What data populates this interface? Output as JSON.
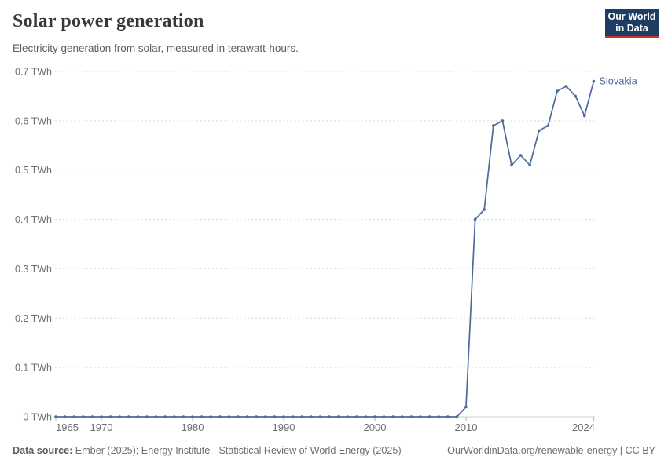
{
  "header": {
    "title": "Solar power generation",
    "subtitle": "Electricity generation from solar, measured in terawatt-hours.",
    "logo": {
      "line1": "Our World",
      "line2": "in Data"
    }
  },
  "colors": {
    "series_blue": "#4c6a9c",
    "logo_navy": "#1d3d63",
    "logo_red": "#c9342c",
    "gridline": "#dedede",
    "axis_line": "#cfcfcf",
    "tick_label": "#6e6e6e"
  },
  "chart_data": {
    "type": "line",
    "title": "Solar power generation",
    "subtitle": "Electricity generation from solar, measured in terawatt-hours.",
    "xlabel": "",
    "ylabel": "TWh",
    "xlim": [
      1965,
      2024
    ],
    "ylim": [
      0,
      0.7
    ],
    "grid": "horizontal-dashed",
    "legend_position": "end-of-line-label",
    "x_ticks": [
      1965,
      1970,
      1980,
      1990,
      2000,
      2010,
      2024
    ],
    "y_ticks": [
      0,
      0.1,
      0.2,
      0.3,
      0.4,
      0.5,
      0.6,
      0.7
    ],
    "y_tick_labels": [
      "0 TWh",
      "0.1 TWh",
      "0.2 TWh",
      "0.3 TWh",
      "0.4 TWh",
      "0.5 TWh",
      "0.6 TWh",
      "0.7 TWh"
    ],
    "series": [
      {
        "name": "Slovakia",
        "color": "#4c6a9c",
        "x": [
          1965,
          1966,
          1967,
          1968,
          1969,
          1970,
          1971,
          1972,
          1973,
          1974,
          1975,
          1976,
          1977,
          1978,
          1979,
          1980,
          1981,
          1982,
          1983,
          1984,
          1985,
          1986,
          1987,
          1988,
          1989,
          1990,
          1991,
          1992,
          1993,
          1994,
          1995,
          1996,
          1997,
          1998,
          1999,
          2000,
          2001,
          2002,
          2003,
          2004,
          2005,
          2006,
          2007,
          2008,
          2009,
          2010,
          2011,
          2012,
          2013,
          2014,
          2015,
          2016,
          2017,
          2018,
          2019,
          2020,
          2021,
          2022,
          2023,
          2024
        ],
        "values": [
          0,
          0,
          0,
          0,
          0,
          0,
          0,
          0,
          0,
          0,
          0,
          0,
          0,
          0,
          0,
          0,
          0,
          0,
          0,
          0,
          0,
          0,
          0,
          0,
          0,
          0,
          0,
          0,
          0,
          0,
          0,
          0,
          0,
          0,
          0,
          0,
          0,
          0,
          0,
          0,
          0,
          0,
          0,
          0,
          0,
          0.02,
          0.4,
          0.42,
          0.59,
          0.6,
          0.51,
          0.53,
          0.51,
          0.58,
          0.59,
          0.66,
          0.67,
          0.65,
          0.61,
          0.68
        ]
      }
    ]
  },
  "footer": {
    "source_label": "Data source:",
    "source_text": " Ember (2025); Energy Institute - Statistical Review of World Energy (2025)",
    "link_text": "OurWorldinData.org/renewable-energy | CC BY"
  }
}
